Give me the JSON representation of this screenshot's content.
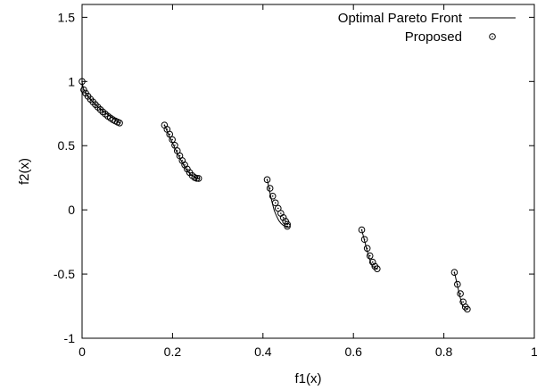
{
  "chart_data": {
    "type": "scatter",
    "title": "",
    "xlabel": "f1(x)",
    "ylabel": "f2(x)",
    "xlim": [
      0,
      1
    ],
    "ylim": [
      -1,
      1.6
    ],
    "xticks": [
      "0",
      "0.2",
      "0.4",
      "0.6",
      "0.8",
      "1"
    ],
    "yticks": [
      "-1",
      "-0.5",
      "0",
      "0.5",
      "1",
      "1.5"
    ],
    "grid": false,
    "legend_position": "top-right",
    "series": [
      {
        "name": "Optimal Pareto Front",
        "style": "line",
        "color": "#000000",
        "segments": [
          {
            "x": [
              0.0,
              0.0025,
              0.005,
              0.0075,
              0.01,
              0.015,
              0.02,
              0.025,
              0.03,
              0.035,
              0.04,
              0.045,
              0.05,
              0.055,
              0.06,
              0.065,
              0.07,
              0.075,
              0.08,
              0.083
            ],
            "y": [
              1.0,
              0.95,
              0.929,
              0.913,
              0.899,
              0.876,
              0.856,
              0.837,
              0.82,
              0.803,
              0.788,
              0.773,
              0.759,
              0.746,
              0.733,
              0.721,
              0.71,
              0.699,
              0.689,
              0.677
            ]
          },
          {
            "x": [
              0.1822,
              0.19,
              0.2,
              0.21,
              0.22,
              0.23,
              0.24,
              0.25,
              0.2577
            ],
            "y": [
              0.66,
              0.597,
              0.52,
              0.446,
              0.377,
              0.315,
              0.275,
              0.254,
              0.245
            ]
          },
          {
            "x": [
              0.4093,
              0.415,
              0.42,
              0.425,
              0.43,
              0.435,
              0.44,
              0.445,
              0.4538
            ],
            "y": [
              0.238,
              0.139,
              0.061,
              -0.006,
              -0.048,
              -0.083,
              -0.106,
              -0.121,
              -0.128
            ]
          },
          {
            "x": [
              0.6184,
              0.622,
              0.626,
              0.63,
              0.634,
              0.638,
              0.642,
              0.6525
            ],
            "y": [
              -0.156,
              -0.205,
              -0.26,
              -0.316,
              -0.365,
              -0.407,
              -0.44,
              -0.459
            ]
          },
          {
            "x": [
              0.8233,
              0.826,
              0.829,
              0.832,
              0.835,
              0.838,
              0.841,
              0.8518
            ],
            "y": [
              -0.487,
              -0.527,
              -0.574,
              -0.62,
              -0.667,
              -0.709,
              -0.743,
              -0.774
            ]
          }
        ]
      },
      {
        "name": "Proposed",
        "style": "marker",
        "marker": "circle-dot",
        "color": "#000000",
        "points": [
          [
            0.0,
            1.0
          ],
          [
            0.0037,
            0.935
          ],
          [
            0.008,
            0.909
          ],
          [
            0.013,
            0.885
          ],
          [
            0.0185,
            0.862
          ],
          [
            0.024,
            0.841
          ],
          [
            0.0295,
            0.82
          ],
          [
            0.035,
            0.8
          ],
          [
            0.0405,
            0.781
          ],
          [
            0.046,
            0.763
          ],
          [
            0.0515,
            0.746
          ],
          [
            0.057,
            0.73
          ],
          [
            0.0625,
            0.716
          ],
          [
            0.068,
            0.703
          ],
          [
            0.0735,
            0.692
          ],
          [
            0.0785,
            0.684
          ],
          [
            0.083,
            0.677
          ],
          [
            0.1822,
            0.66
          ],
          [
            0.188,
            0.627
          ],
          [
            0.1937,
            0.589
          ],
          [
            0.1995,
            0.547
          ],
          [
            0.205,
            0.503
          ],
          [
            0.2105,
            0.46
          ],
          [
            0.216,
            0.421
          ],
          [
            0.2215,
            0.384
          ],
          [
            0.227,
            0.35
          ],
          [
            0.2325,
            0.318
          ],
          [
            0.238,
            0.29
          ],
          [
            0.2435,
            0.267
          ],
          [
            0.249,
            0.252
          ],
          [
            0.2535,
            0.246
          ],
          [
            0.2577,
            0.245
          ],
          [
            0.4093,
            0.235
          ],
          [
            0.4155,
            0.168
          ],
          [
            0.4215,
            0.107
          ],
          [
            0.4275,
            0.055
          ],
          [
            0.4335,
            0.012
          ],
          [
            0.4395,
            -0.027
          ],
          [
            0.445,
            -0.06
          ],
          [
            0.45,
            -0.089
          ],
          [
            0.454,
            -0.113
          ],
          [
            0.4538,
            -0.128
          ],
          [
            0.6184,
            -0.156
          ],
          [
            0.6245,
            -0.23
          ],
          [
            0.6305,
            -0.3
          ],
          [
            0.6365,
            -0.358
          ],
          [
            0.6425,
            -0.407
          ],
          [
            0.6475,
            -0.44
          ],
          [
            0.6525,
            -0.459
          ],
          [
            0.8233,
            -0.487
          ],
          [
            0.83,
            -0.58
          ],
          [
            0.8365,
            -0.653
          ],
          [
            0.8425,
            -0.717
          ],
          [
            0.8475,
            -0.756
          ],
          [
            0.8518,
            -0.774
          ]
        ]
      }
    ]
  }
}
